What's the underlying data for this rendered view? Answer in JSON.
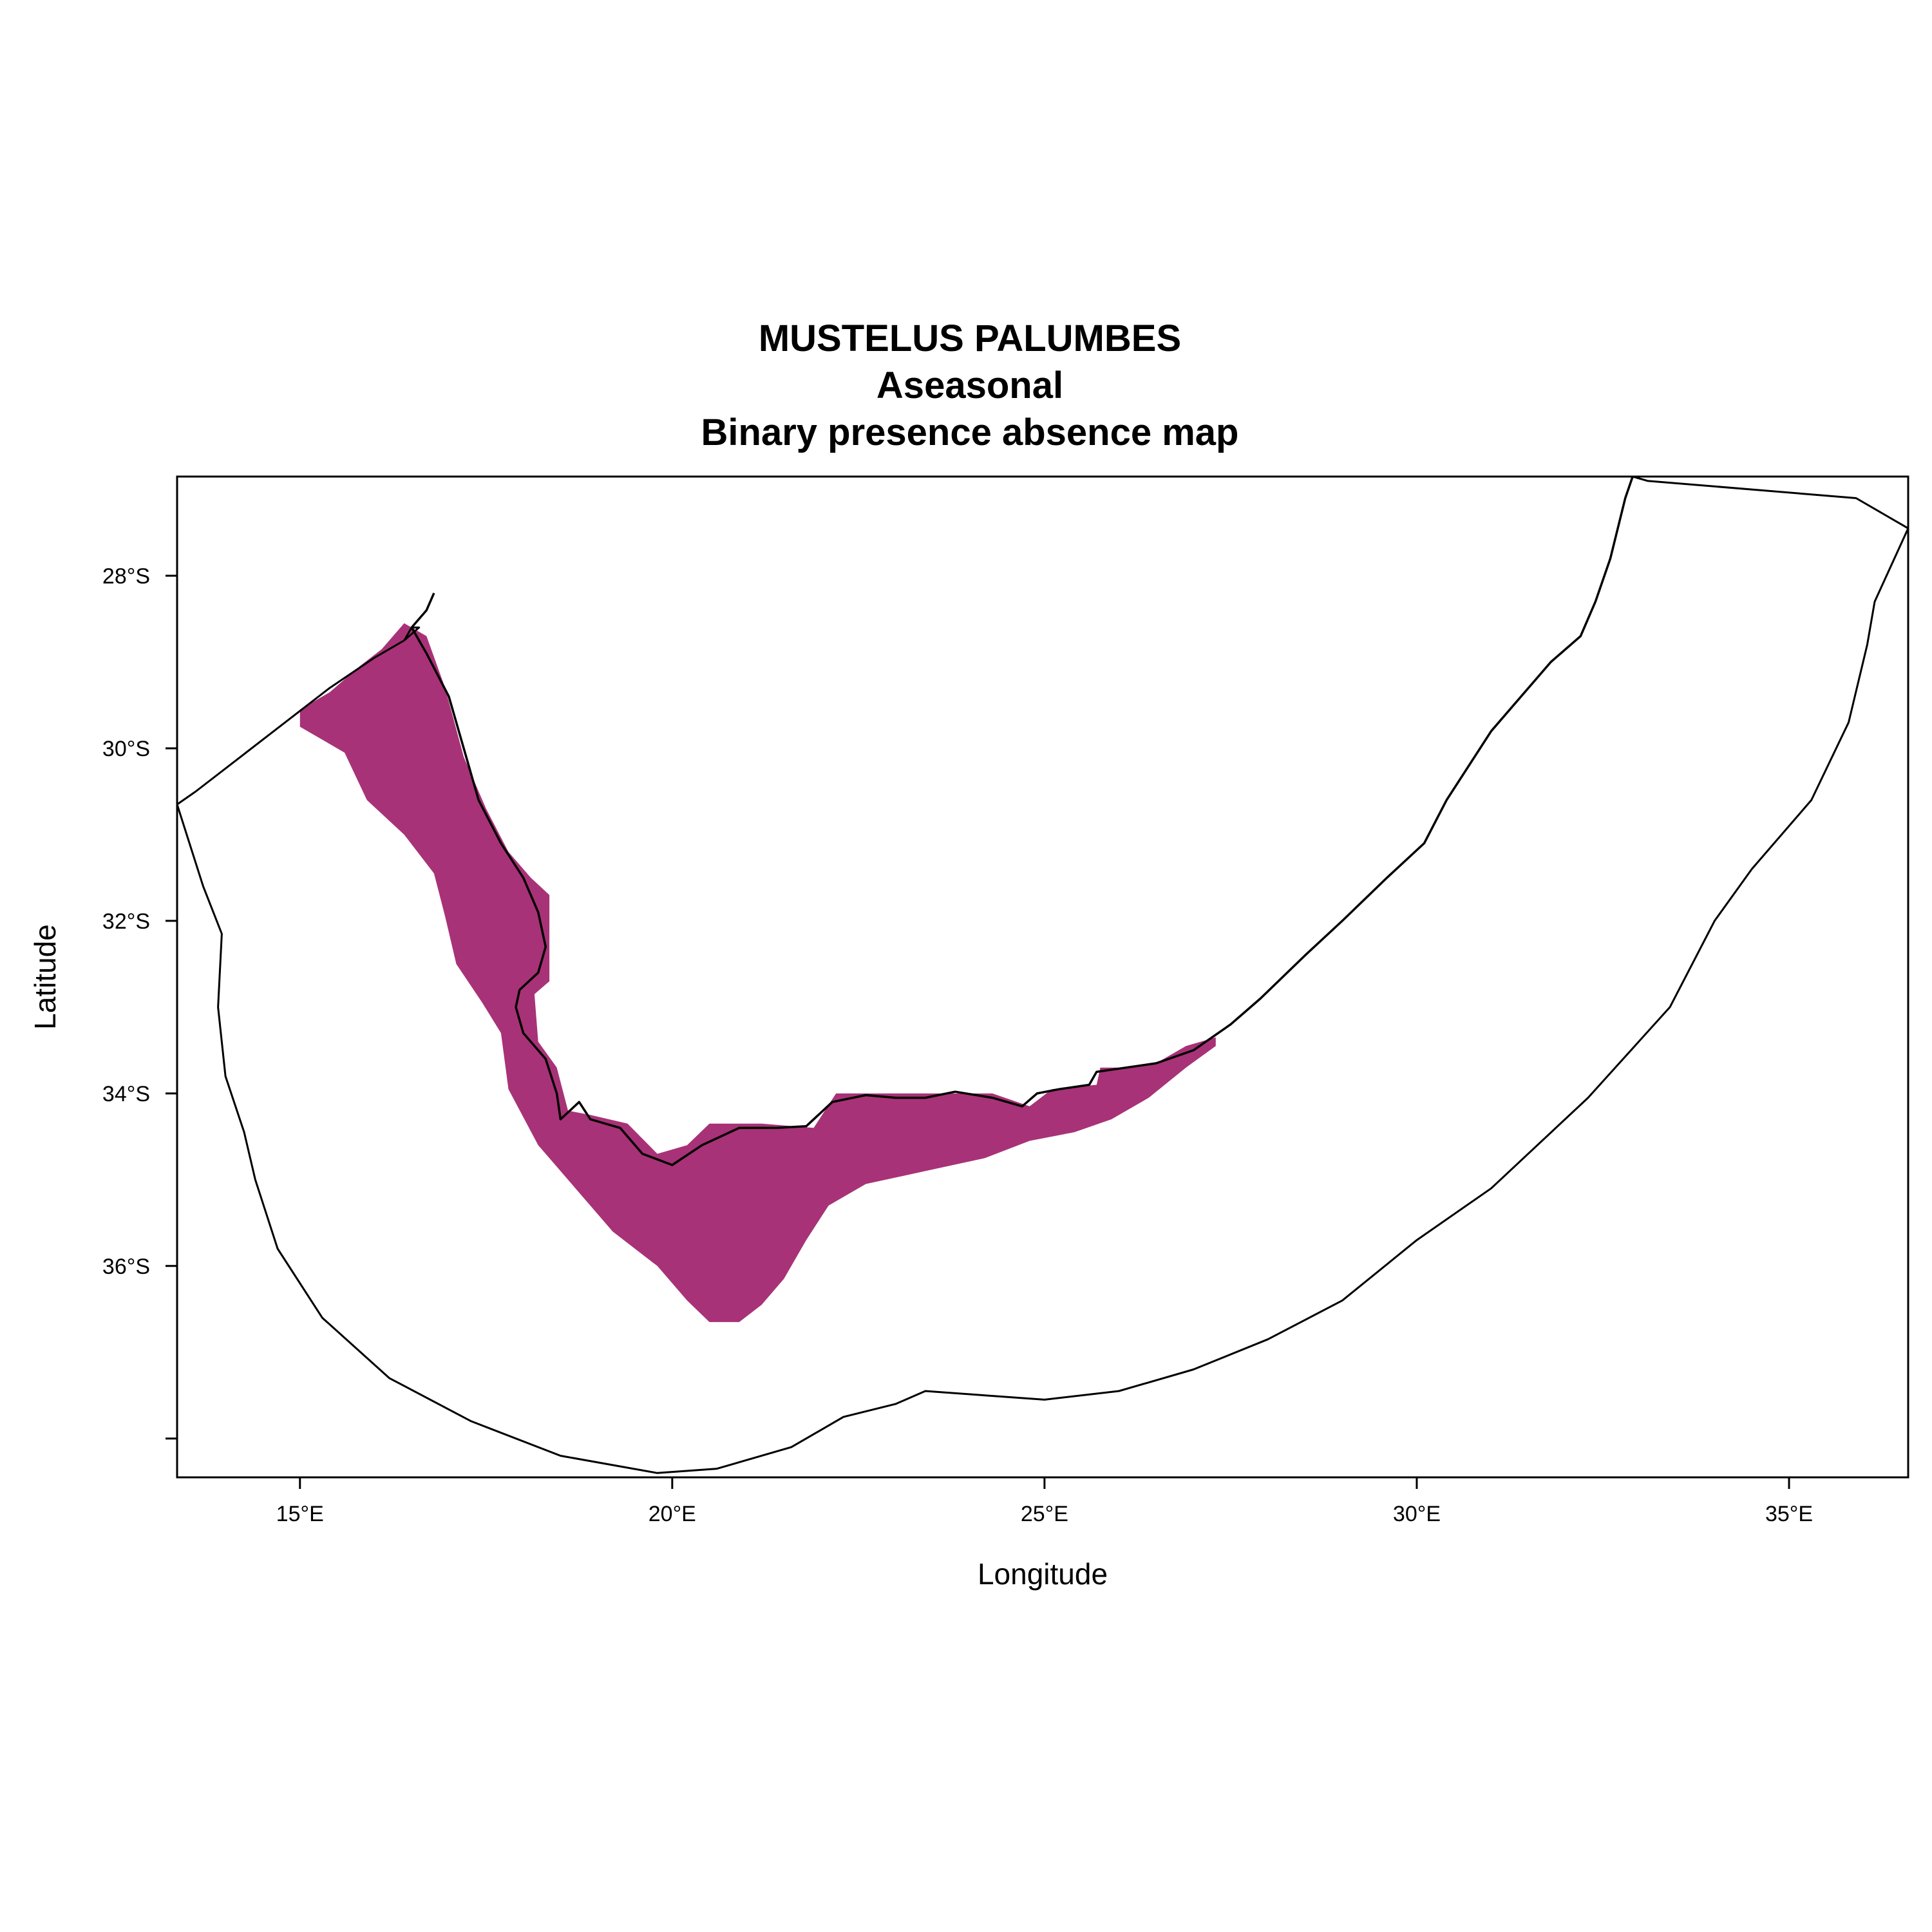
{
  "title": {
    "line1": "MUSTELUS PALUMBES",
    "line2": "Aseasonal",
    "line3": "Binary presence absence map"
  },
  "axes": {
    "xlabel": "Longitude",
    "ylabel": "Latitude",
    "xlim": [
      13.35,
      36.6
    ],
    "ylim": [
      -38.45,
      -26.85
    ],
    "x_ticks": [
      {
        "value": 15,
        "label": "15°E"
      },
      {
        "value": 20,
        "label": "20°E"
      },
      {
        "value": 25,
        "label": "25°E"
      },
      {
        "value": 30,
        "label": "30°E"
      },
      {
        "value": 35,
        "label": "35°E"
      }
    ],
    "y_ticks": [
      {
        "value": -28,
        "label": "28°S"
      },
      {
        "value": -30,
        "label": "30°S"
      },
      {
        "value": -32,
        "label": "32°S"
      },
      {
        "value": -34,
        "label": "34°S"
      },
      {
        "value": -36,
        "label": "36°S"
      },
      {
        "value": -38,
        "label": ""
      }
    ]
  },
  "colors": {
    "presence": "#a83277",
    "line": "#000000"
  },
  "chart_data": {
    "type": "map",
    "layers": [
      {
        "name": "coastline",
        "points": [
          [
            16.8,
            -28.2
          ],
          [
            16.7,
            -28.4
          ],
          [
            16.5,
            -28.6
          ],
          [
            16.7,
            -28.9
          ],
          [
            17.0,
            -29.4
          ],
          [
            17.2,
            -30.0
          ],
          [
            17.4,
            -30.6
          ],
          [
            17.7,
            -31.1
          ],
          [
            18.0,
            -31.5
          ],
          [
            18.2,
            -31.9
          ],
          [
            18.3,
            -32.3
          ],
          [
            18.2,
            -32.6
          ],
          [
            17.95,
            -32.8
          ],
          [
            17.9,
            -33.0
          ],
          [
            18.0,
            -33.3
          ],
          [
            18.3,
            -33.6
          ],
          [
            18.45,
            -34.0
          ],
          [
            18.5,
            -34.3
          ],
          [
            18.75,
            -34.1
          ],
          [
            18.9,
            -34.3
          ],
          [
            19.3,
            -34.4
          ],
          [
            19.6,
            -34.7
          ],
          [
            20.0,
            -34.83
          ],
          [
            20.4,
            -34.6
          ],
          [
            20.9,
            -34.4
          ],
          [
            21.4,
            -34.4
          ],
          [
            21.8,
            -34.38
          ],
          [
            22.15,
            -34.1
          ],
          [
            22.6,
            -34.02
          ],
          [
            23.0,
            -34.05
          ],
          [
            23.4,
            -34.05
          ],
          [
            23.8,
            -33.98
          ],
          [
            24.3,
            -34.05
          ],
          [
            24.7,
            -34.15
          ],
          [
            24.9,
            -34.0
          ],
          [
            25.2,
            -33.95
          ],
          [
            25.6,
            -33.9
          ],
          [
            25.7,
            -33.75
          ],
          [
            26.1,
            -33.7
          ],
          [
            26.5,
            -33.65
          ],
          [
            27.0,
            -33.5
          ],
          [
            27.5,
            -33.2
          ],
          [
            27.9,
            -32.9
          ],
          [
            28.5,
            -32.4
          ],
          [
            29.0,
            -32.0
          ],
          [
            29.6,
            -31.5
          ],
          [
            30.1,
            -31.1
          ],
          [
            30.4,
            -30.6
          ],
          [
            30.7,
            -30.2
          ],
          [
            31.0,
            -29.8
          ],
          [
            31.4,
            -29.4
          ],
          [
            31.8,
            -29.0
          ],
          [
            32.2,
            -28.7
          ],
          [
            32.4,
            -28.3
          ],
          [
            32.6,
            -27.8
          ],
          [
            32.8,
            -27.1
          ],
          [
            32.9,
            -26.85
          ]
        ]
      },
      {
        "name": "offshore-boundary",
        "points": [
          [
            13.35,
            -30.65
          ],
          [
            13.6,
            -30.5
          ],
          [
            14.2,
            -30.1
          ],
          [
            14.8,
            -29.7
          ],
          [
            15.4,
            -29.3
          ],
          [
            16.0,
            -28.95
          ],
          [
            16.4,
            -28.75
          ],
          [
            16.6,
            -28.6
          ],
          [
            16.5,
            -28.6
          ],
          [
            16.4,
            -28.75
          ],
          [
            16.0,
            -28.95
          ],
          [
            15.4,
            -29.3
          ],
          [
            14.8,
            -29.7
          ],
          [
            14.2,
            -30.1
          ],
          [
            13.6,
            -30.5
          ],
          [
            13.35,
            -30.65
          ],
          [
            13.7,
            -31.6
          ],
          [
            13.95,
            -32.15
          ],
          [
            13.9,
            -33.0
          ],
          [
            14.0,
            -33.8
          ],
          [
            14.25,
            -34.45
          ],
          [
            14.4,
            -35.0
          ],
          [
            14.7,
            -35.8
          ],
          [
            15.3,
            -36.6
          ],
          [
            16.2,
            -37.3
          ],
          [
            17.3,
            -37.8
          ],
          [
            18.5,
            -38.2
          ],
          [
            19.8,
            -38.4
          ],
          [
            20.6,
            -38.35
          ],
          [
            21.6,
            -38.1
          ],
          [
            22.3,
            -37.75
          ],
          [
            23.0,
            -37.6
          ],
          [
            23.4,
            -37.45
          ],
          [
            24.2,
            -37.5
          ],
          [
            25.0,
            -37.55
          ],
          [
            26.0,
            -37.45
          ],
          [
            27.0,
            -37.2
          ],
          [
            28.0,
            -36.85
          ],
          [
            29.0,
            -36.4
          ],
          [
            30.0,
            -35.7
          ],
          [
            31.0,
            -35.1
          ],
          [
            32.3,
            -34.05
          ],
          [
            33.4,
            -33.0
          ],
          [
            34.0,
            -32.0
          ],
          [
            34.5,
            -31.4
          ],
          [
            35.3,
            -30.6
          ],
          [
            35.8,
            -29.7
          ],
          [
            36.05,
            -28.8
          ],
          [
            36.15,
            -28.3
          ],
          [
            36.6,
            -27.45
          ],
          [
            35.9,
            -27.1
          ],
          [
            33.1,
            -26.9
          ],
          [
            32.9,
            -26.85
          ]
        ]
      }
    ],
    "presence_region": [
      [
        16.4,
        -28.55
      ],
      [
        16.7,
        -28.7
      ],
      [
        16.95,
        -29.3
      ],
      [
        17.2,
        -30.1
      ],
      [
        17.5,
        -30.7
      ],
      [
        17.8,
        -31.2
      ],
      [
        18.1,
        -31.5
      ],
      [
        18.35,
        -31.7
      ],
      [
        18.35,
        -32.7
      ],
      [
        18.15,
        -32.85
      ],
      [
        18.2,
        -33.4
      ],
      [
        18.45,
        -33.7
      ],
      [
        18.6,
        -34.2
      ],
      [
        18.9,
        -34.25
      ],
      [
        19.4,
        -34.35
      ],
      [
        19.8,
        -34.7
      ],
      [
        20.2,
        -34.6
      ],
      [
        20.5,
        -34.35
      ],
      [
        21.2,
        -34.35
      ],
      [
        21.9,
        -34.4
      ],
      [
        22.2,
        -34.0
      ],
      [
        23.2,
        -34.0
      ],
      [
        24.3,
        -34.0
      ],
      [
        24.8,
        -34.15
      ],
      [
        25.1,
        -33.95
      ],
      [
        25.7,
        -33.9
      ],
      [
        25.75,
        -33.7
      ],
      [
        26.1,
        -33.7
      ],
      [
        26.5,
        -33.65
      ],
      [
        26.9,
        -33.45
      ],
      [
        27.3,
        -33.35
      ],
      [
        27.3,
        -33.45
      ],
      [
        26.9,
        -33.7
      ],
      [
        26.4,
        -34.05
      ],
      [
        25.9,
        -34.3
      ],
      [
        25.4,
        -34.45
      ],
      [
        24.8,
        -34.55
      ],
      [
        24.2,
        -34.75
      ],
      [
        23.4,
        -34.9
      ],
      [
        22.6,
        -35.05
      ],
      [
        22.1,
        -35.3
      ],
      [
        21.8,
        -35.7
      ],
      [
        21.5,
        -36.15
      ],
      [
        21.2,
        -36.45
      ],
      [
        20.9,
        -36.65
      ],
      [
        20.5,
        -36.65
      ],
      [
        20.2,
        -36.4
      ],
      [
        19.8,
        -36.0
      ],
      [
        19.2,
        -35.6
      ],
      [
        18.7,
        -35.1
      ],
      [
        18.2,
        -34.6
      ],
      [
        17.8,
        -33.95
      ],
      [
        17.7,
        -33.3
      ],
      [
        17.45,
        -32.95
      ],
      [
        17.1,
        -32.5
      ],
      [
        16.95,
        -31.95
      ],
      [
        16.8,
        -31.45
      ],
      [
        16.4,
        -31.0
      ],
      [
        15.9,
        -30.6
      ],
      [
        15.6,
        -30.05
      ],
      [
        15.0,
        -29.75
      ],
      [
        15.0,
        -29.55
      ],
      [
        15.4,
        -29.35
      ],
      [
        15.8,
        -29.05
      ],
      [
        16.1,
        -28.85
      ]
    ]
  }
}
